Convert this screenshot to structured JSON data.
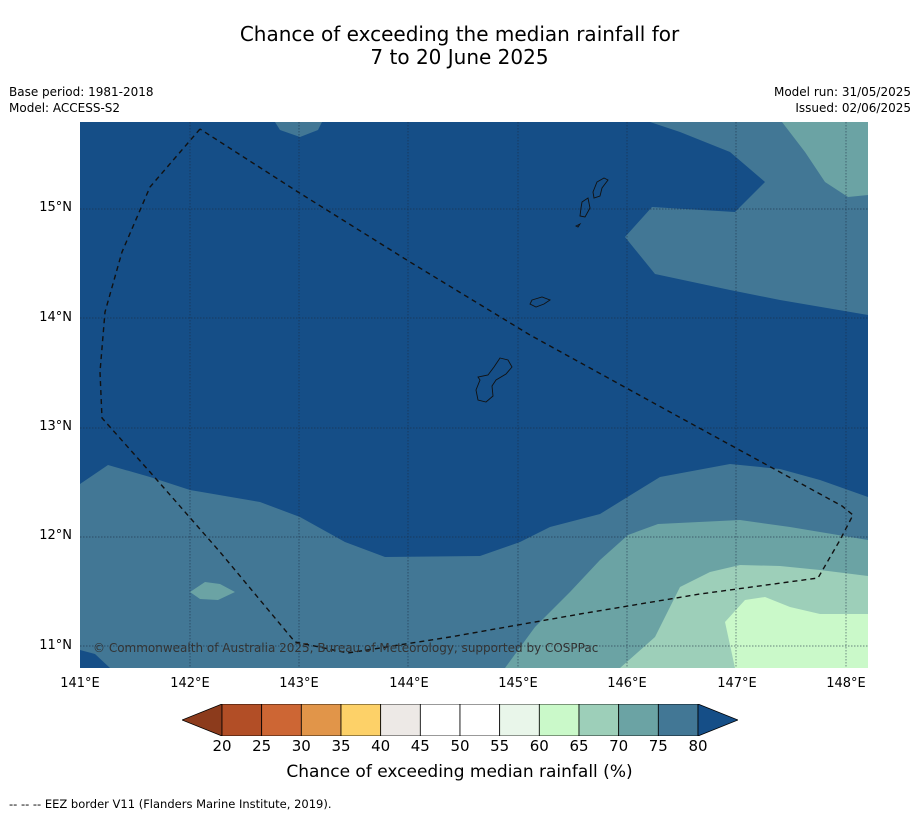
{
  "title_line1": "Chance of exceeding the median rainfall for",
  "title_line2": "7 to 20 June 2025",
  "base_period": "Base period: 1981-2018",
  "model": "Model: ACCESS-S2",
  "model_run": "Model run: 31/05/2025",
  "issued": "Issued: 02/06/2025",
  "lat_labels": [
    "15°N",
    "14°N",
    "13°N",
    "12°N",
    "11°N"
  ],
  "lon_labels": [
    "141°E",
    "142°E",
    "143°E",
    "144°E",
    "145°E",
    "146°E",
    "147°E",
    "148°E"
  ],
  "copyright": "© Commonwealth of Australia 2025, Bureau of Meteorology, supported by COSPPac",
  "colorbar": {
    "label": "Chance of exceeding median rainfall (%)",
    "ticks": [
      "20",
      "25",
      "30",
      "35",
      "40",
      "45",
      "50",
      "55",
      "60",
      "65",
      "70",
      "75",
      "80"
    ],
    "colors": [
      "#8c3b1c",
      "#b24e26",
      "#cd6634",
      "#e19549",
      "#fdd168",
      "#ede9e6",
      "#ffffff",
      "#ffffff",
      "#e9f6ea",
      "#caf9c9",
      "#9dcfb9",
      "#6ba3a4",
      "#427795",
      "#154e87"
    ]
  },
  "legend_text": "--  --  -- EEZ border V11 (Flanders Marine Institute, 2019).",
  "chart_data": {
    "type": "heatmap",
    "region": "Guam / Northern Mariana Islands",
    "lon_range": [
      141,
      148.2
    ],
    "lat_range": [
      10.8,
      15.8
    ],
    "units": "%",
    "category_colors": {
      "75-80": "#427795",
      "80+": "#154e87",
      "70-75": "#6ba3a4",
      "65-70": "#9dcfb9",
      "60-65": "#caf9c9"
    }
  }
}
